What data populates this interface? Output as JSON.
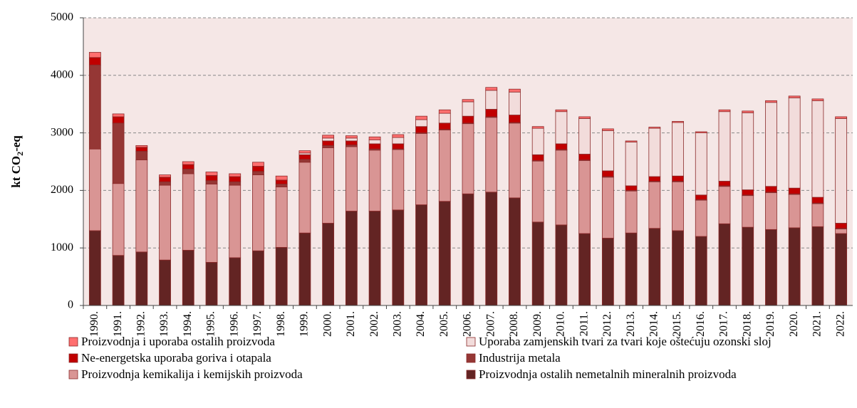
{
  "chart_data": {
    "type": "stacked_bar",
    "y_label": {
      "main": "kt CO",
      "sub": "2",
      "rest": "-eq"
    },
    "categories": [
      "1990.",
      "1991.",
      "1992.",
      "1993.",
      "1994.",
      "1995.",
      "1996.",
      "1997.",
      "1998.",
      "1999.",
      "2000.",
      "2001.",
      "2002.",
      "2003.",
      "2004.",
      "2005.",
      "2006.",
      "2007.",
      "2008.",
      "2009.",
      "2010.",
      "2011.",
      "2012.",
      "2013.",
      "2014.",
      "2015.",
      "2016.",
      "2017.",
      "2018.",
      "2019.",
      "2020.",
      "2021.",
      "2022."
    ],
    "series": [
      {
        "name": "Proizvodnja ostalih nemetalnih mineralnih proizvoda",
        "color": "#632423",
        "values": [
          1300,
          870,
          930,
          790,
          960,
          750,
          830,
          950,
          1010,
          1260,
          1430,
          1640,
          1640,
          1660,
          1750,
          1810,
          1940,
          1970,
          1870,
          1450,
          1400,
          1250,
          1170,
          1260,
          1340,
          1300,
          1200,
          1420,
          1360,
          1320,
          1350,
          1370,
          1250
        ]
      },
      {
        "name": "Proizvodnja kemikalija i kemijskih proizvoda",
        "color": "#d99594",
        "values": [
          1420,
          1250,
          1600,
          1300,
          1330,
          1360,
          1260,
          1320,
          1050,
          1230,
          1310,
          1120,
          1060,
          1050,
          1240,
          1240,
          1220,
          1300,
          1300,
          1060,
          1300,
          1270,
          1060,
          730,
          810,
          850,
          630,
          650,
          550,
          640,
          580,
          400,
          80
        ]
      },
      {
        "name": "Industrija metala",
        "color": "#953735",
        "values": [
          1460,
          1050,
          150,
          60,
          80,
          60,
          60,
          60,
          50,
          50,
          40,
          30,
          20,
          10,
          10,
          10,
          10,
          10,
          10,
          10,
          10,
          10,
          10,
          10,
          10,
          10,
          10,
          10,
          10,
          10,
          10,
          10,
          10
        ]
      },
      {
        "name": "Ne-energetska uporaba goriva i otapala",
        "color": "#c00000",
        "values": [
          130,
          110,
          70,
          80,
          80,
          90,
          90,
          90,
          70,
          80,
          80,
          70,
          90,
          90,
          110,
          110,
          120,
          130,
          130,
          100,
          100,
          100,
          100,
          80,
          80,
          90,
          80,
          80,
          90,
          100,
          100,
          100,
          90
        ]
      },
      {
        "name": "Uporaba zamjenskih tvari za tvari koje oštećuju ozonski sloj",
        "color": "#f2dcdb",
        "values": [
          0,
          0,
          0,
          0,
          0,
          0,
          0,
          0,
          0,
          30,
          50,
          50,
          70,
          110,
          120,
          170,
          250,
          330,
          400,
          460,
          560,
          620,
          700,
          760,
          840,
          930,
          1080,
          1210,
          1340,
          1460,
          1570,
          1680,
          1820
        ]
      },
      {
        "name": "Proizvodnja i uporaba ostalih proizvoda",
        "color": "#ff6f6f",
        "values": [
          90,
          50,
          30,
          40,
          50,
          60,
          50,
          70,
          70,
          40,
          50,
          40,
          50,
          50,
          60,
          60,
          40,
          50,
          50,
          30,
          30,
          30,
          30,
          20,
          20,
          20,
          20,
          30,
          30,
          30,
          30,
          30,
          30
        ]
      }
    ],
    "ylim": [
      0,
      5000
    ],
    "yticks": [
      0,
      1000,
      2000,
      3000,
      4000,
      5000
    ],
    "grid": true,
    "plot_background": "#f5e7e6",
    "bar_outline": "#8b2a2a"
  }
}
